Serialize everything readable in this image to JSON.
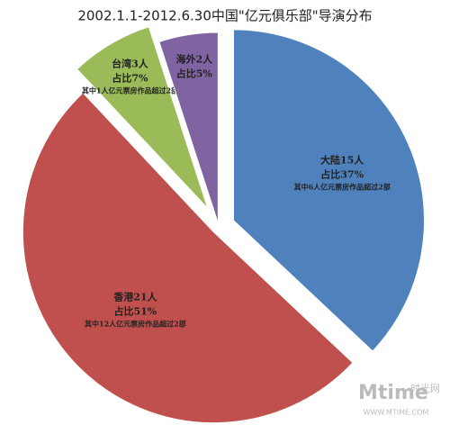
{
  "chart_data": {
    "type": "pie",
    "title": "2002.1.1-2012.6.30中国\"亿元俱乐部\"导演分布",
    "categories": [
      "大陆15人",
      "香港21人",
      "台湾3人",
      "海外2人"
    ],
    "values": [
      37,
      51,
      7,
      5
    ],
    "value_labels": [
      "占比37%",
      "占比51%",
      "占比7%",
      "占比5%"
    ],
    "notes": [
      "其中6人亿元票房作品超过2部",
      "其中12人亿元票房作品超过2部",
      "其中1人亿元票房作品超过2部",
      null
    ],
    "colors": [
      "#4f81bd",
      "#c0504d",
      "#9bbb59",
      "#8064a2"
    ],
    "watermark": [
      "Mtime",
      "时光网",
      "WWW.MTIME.COM"
    ]
  }
}
